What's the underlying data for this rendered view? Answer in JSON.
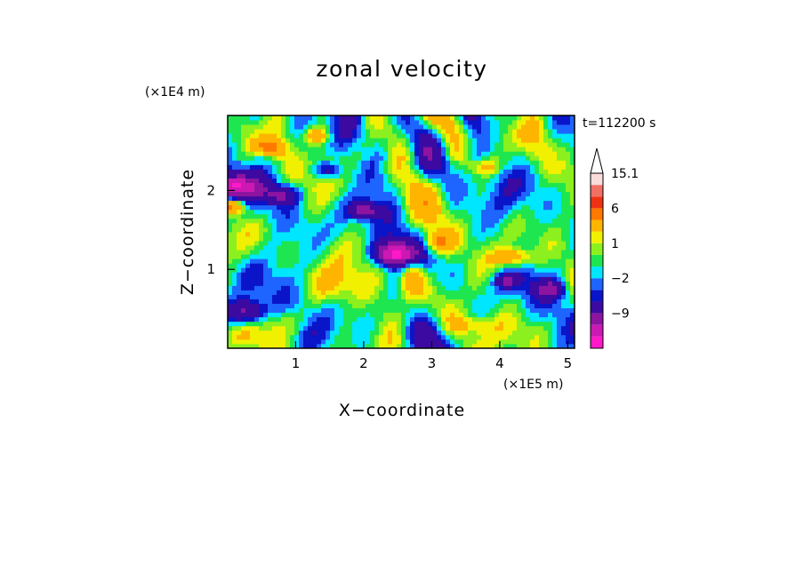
{
  "chart_data": {
    "type": "heatmap",
    "title": "zonal velocity",
    "xlabel": "X−coordinate",
    "ylabel": "Z−coordinate",
    "x_multiplier": "(×1E5 m)",
    "y_multiplier": "(×1E4 m)",
    "time_label": "t=112200 s",
    "xlim": [
      0,
      5.1
    ],
    "ylim": [
      0,
      2.95
    ],
    "xticks": [
      1,
      2,
      3,
      4,
      5
    ],
    "yticks": [
      1,
      2
    ],
    "colorbar": {
      "levels": [
        -15,
        -12,
        -9,
        -6,
        -3,
        -2,
        -1,
        0,
        1,
        2,
        3,
        6,
        9,
        12,
        15.1
      ],
      "colors": [
        "#ff19c8",
        "#cc19b4",
        "#8c14a0",
        "#3c0aa0",
        "#0a14c8",
        "#1e64ff",
        "#00e6ff",
        "#1ee650",
        "#8cf01e",
        "#f0f000",
        "#ffb400",
        "#ff7800",
        "#f03214",
        "#f07064",
        "#fadcdc"
      ],
      "tick_labels": [
        "15.1",
        "6",
        "1",
        "−2",
        "−9"
      ],
      "tick_values": [
        15.1,
        6,
        1,
        -2,
        -9
      ],
      "extend_top": true
    }
  }
}
